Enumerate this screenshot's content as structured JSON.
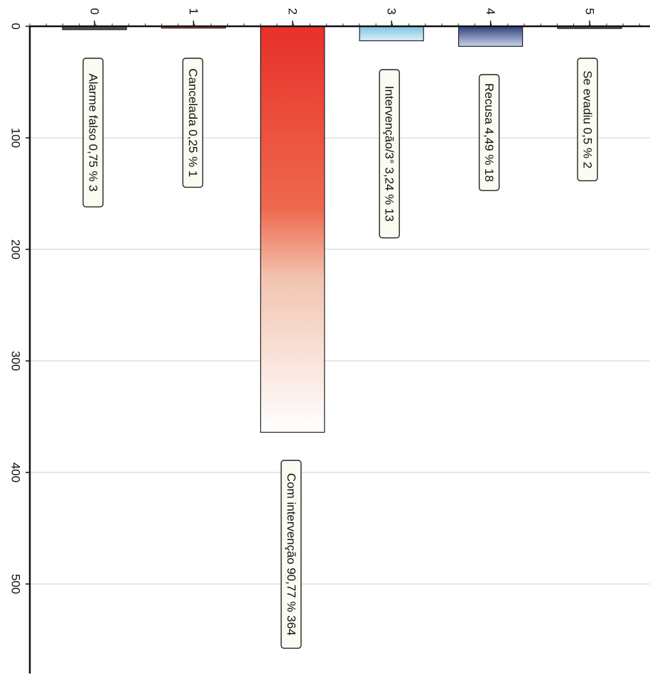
{
  "chart_data": {
    "type": "bar",
    "orientation": "rotated-90-clockwise",
    "categories": [
      "0",
      "1",
      "2",
      "3",
      "4",
      "5"
    ],
    "values": [
      3,
      1,
      364,
      13,
      18,
      2
    ],
    "labels": [
      "Alarme falso 0,75 % 3",
      "Cancelada 0,25 % 1",
      "Com intervenção 90,77 % 364",
      "Intervenção/3° 3,24 % 13",
      "Recusa 4,49 % 18",
      "Se evadiu 0,5 % 2"
    ],
    "value_ticks": [
      "0",
      "100",
      "200",
      "300",
      "400",
      "500"
    ],
    "ylim": [
      0,
      580
    ],
    "grid": true,
    "colors": [
      "#4a5a4a",
      "#e8603c",
      "#e8322a",
      "#9fd8ec",
      "#5a6fa8",
      "#4a6a60"
    ]
  }
}
